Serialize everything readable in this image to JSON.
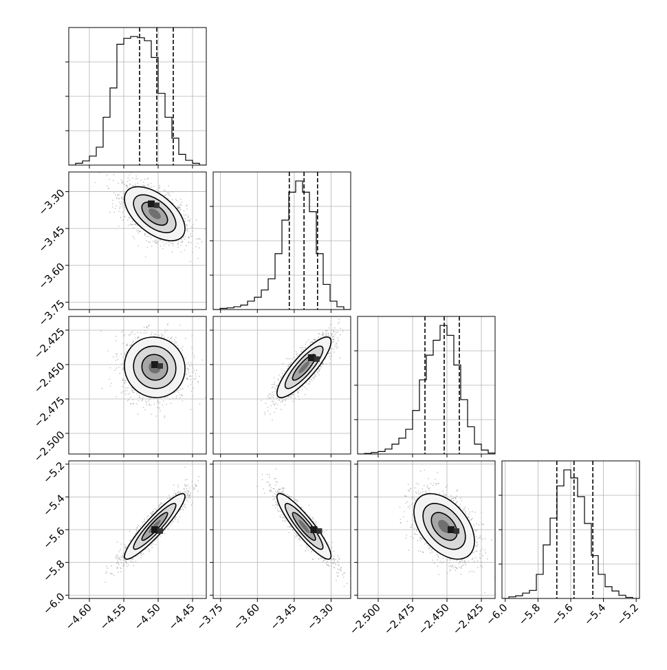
{
  "chart_data": {
    "type": "corner",
    "title": "",
    "parameters": [
      {
        "range": [
          -4.63,
          -4.43
        ],
        "ticks": [
          -4.6,
          -4.55,
          -4.5,
          -4.45
        ],
        "tick_labels": [
          "−4.60",
          "−4.55",
          "−4.50",
          "−4.45"
        ],
        "quantiles": [
          -4.527,
          -4.502,
          -4.478
        ]
      },
      {
        "range": [
          -3.78,
          -3.22
        ],
        "ticks": [
          -3.75,
          -3.6,
          -3.45,
          -3.3
        ],
        "tick_labels": [
          "−3.75",
          "−3.60",
          "−3.45",
          "−3.30"
        ],
        "quantiles": [
          -3.47,
          -3.41,
          -3.355
        ]
      },
      {
        "range": [
          -2.515,
          -2.415
        ],
        "ticks": [
          -2.5,
          -2.475,
          -2.45,
          -2.425
        ],
        "tick_labels": [
          "−2.500",
          "−2.475",
          "−2.450",
          "−2.425"
        ],
        "quantiles": [
          -2.466,
          -2.452,
          -2.441
        ]
      },
      {
        "range": [
          -6.02,
          -5.18
        ],
        "ticks": [
          -6.0,
          -5.8,
          -5.6,
          -5.4,
          -5.2
        ],
        "tick_labels": [
          "−6.0",
          "−5.8",
          "−5.6",
          "−5.4",
          "−5.2"
        ],
        "quantiles": [
          -5.685,
          -5.58,
          -5.465
        ]
      }
    ],
    "histograms": [
      {
        "bins_from": -4.63,
        "bin_width": 0.01,
        "counts": [
          0,
          3,
          7,
          15,
          30,
          80,
          129,
          202,
          212,
          215,
          213,
          208,
          180,
          120,
          80,
          45,
          18,
          8,
          3,
          0
        ]
      },
      {
        "bins_from": -3.78,
        "bin_width": 0.028,
        "counts": [
          0,
          2,
          3,
          5,
          8,
          15,
          22,
          35,
          55,
          100,
          160,
          210,
          230,
          210,
          175,
          100,
          45,
          15,
          5,
          0
        ]
      },
      {
        "bins_from": -2.515,
        "bin_width": 0.005,
        "counts": [
          0,
          1,
          3,
          5,
          10,
          20,
          32,
          50,
          88,
          150,
          200,
          230,
          260,
          240,
          180,
          110,
          55,
          20,
          8,
          2
        ]
      },
      {
        "bins_from": -6.02,
        "bin_width": 0.042,
        "counts": [
          0,
          3,
          5,
          10,
          15,
          45,
          100,
          150,
          210,
          240,
          225,
          190,
          140,
          80,
          45,
          22,
          14,
          6,
          2,
          0
        ]
      }
    ],
    "pairs": [
      {
        "row": 1,
        "col": 0,
        "center": [
          -4.505,
          -3.39
        ],
        "sd": [
          0.022,
          0.055
        ],
        "rho": -0.55,
        "peak": [
          -4.51,
          -3.35
        ]
      },
      {
        "row": 2,
        "col": 0,
        "center": [
          -4.505,
          -2.452
        ],
        "sd": [
          0.022,
          0.011
        ],
        "rho": -0.05,
        "peak": [
          -4.505,
          -2.45
        ]
      },
      {
        "row": 2,
        "col": 1,
        "center": [
          -3.41,
          -2.452
        ],
        "sd": [
          0.055,
          0.011
        ],
        "rho": 0.85,
        "peak": [
          -3.38,
          -2.445
        ]
      },
      {
        "row": 3,
        "col": 0,
        "center": [
          -4.505,
          -5.58
        ],
        "sd": [
          0.022,
          0.1
        ],
        "rho": 0.92,
        "peak": [
          -4.505,
          -5.6
        ]
      },
      {
        "row": 3,
        "col": 1,
        "center": [
          -3.41,
          -5.58
        ],
        "sd": [
          0.055,
          0.1
        ],
        "rho": -0.9,
        "peak": [
          -3.37,
          -5.6
        ]
      },
      {
        "row": 3,
        "col": 2,
        "center": [
          -2.452,
          -5.58
        ],
        "sd": [
          0.011,
          0.1
        ],
        "rho": -0.45,
        "peak": [
          -2.447,
          -5.6
        ]
      }
    ],
    "grid": true,
    "legend": "none"
  }
}
